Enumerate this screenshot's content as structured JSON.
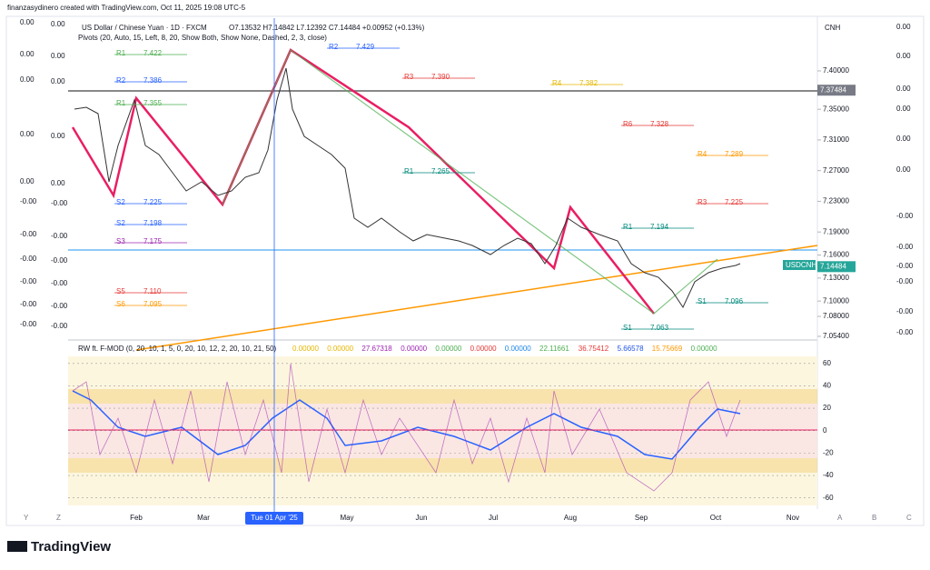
{
  "header": "finanzasydinero created with TradingView.com, Oct 11, 2025 19:08 UTC-5",
  "legend": {
    "symbol": "US Dollar / Chinese Yuan · 1D · FXCM",
    "ohlc": "O7.13532 H7.14842 L7.12392 C7.14484 +0.00952 (+0.13%)",
    "pivots": "Pivots (20, Auto, 15, Left, 8, 20, Show Both, Show None, Dashed, 2, 3, close)"
  },
  "currency": "CNH",
  "price_axis": {
    "ylim": [
      7.0516,
      7.4687
    ],
    "yticks": [
      {
        "value": 7.4,
        "label": "7.40000"
      },
      {
        "value": 7.35,
        "label": "7.35000"
      },
      {
        "value": 7.31,
        "label": "7.31000"
      },
      {
        "value": 7.27,
        "label": "7.27000"
      },
      {
        "value": 7.23,
        "label": "7.23000"
      },
      {
        "value": 7.19,
        "label": "7.19000"
      },
      {
        "value": 7.16,
        "label": "7.16000"
      },
      {
        "value": 7.13,
        "label": "7.13000"
      },
      {
        "value": 7.1,
        "label": "7.10000"
      },
      {
        "value": 7.08,
        "label": "7.08000"
      },
      {
        "value": 7.054,
        "label": "7.05400"
      }
    ],
    "marked_level": {
      "value": 7.37484,
      "label": "7.37484"
    },
    "last_price": {
      "symbol": "USDCNH",
      "value": 7.14484,
      "label": "7.14484"
    }
  },
  "left_scale_1": [
    "0.00",
    "0.00",
    "0.00",
    "0.00",
    "0.00",
    "-0.00",
    "-0.00",
    "-0.00",
    "-0.00",
    "-0.00",
    "-0.00"
  ],
  "left_scale_2": [
    "0.00",
    "0.00",
    "0.00",
    "0.00",
    "0.00",
    "-0.00",
    "-0.00",
    "-0.00",
    "-0.00",
    "-0.00",
    "-0.00"
  ],
  "right_scale": [
    "0.00",
    "0.00",
    "0.00",
    "0.00",
    "0.00",
    "0.00",
    "-0.00",
    "-0.00",
    "-0.00",
    "-0.00",
    "-0.00",
    "-0.00"
  ],
  "pivots": [
    {
      "label": "R1",
      "price": "7.422"
    },
    {
      "label": "R2",
      "price": "7.386"
    },
    {
      "label": "R1",
      "price": "7.355"
    },
    {
      "label": "S2",
      "price": "7.225"
    },
    {
      "label": "S2",
      "price": "7.198"
    },
    {
      "label": "S3",
      "price": "7.175"
    },
    {
      "label": "S5",
      "price": "7.110"
    },
    {
      "label": "S6",
      "price": "7.095"
    },
    {
      "label": "R2",
      "price": "7.429"
    },
    {
      "label": "R3",
      "price": "7.390"
    },
    {
      "label": "R1",
      "price": "7.265"
    },
    {
      "label": "R4",
      "price": "7.382"
    },
    {
      "label": "R6",
      "price": "7.328"
    },
    {
      "label": "R4",
      "price": "7.289"
    },
    {
      "label": "R3",
      "price": "7.225"
    },
    {
      "label": "S1",
      "price": "7.096"
    },
    {
      "label": "S1",
      "price": "7.063"
    },
    {
      "label": "R1",
      "price": "7.194"
    }
  ],
  "oscillator": {
    "title": "RW ft. F-MOD (0, 20, 10, 1, 5, 0, 20, 10, 12, 2, 20, 10, 21, 50)",
    "readouts": [
      {
        "text": "0.00000",
        "color": "#e6b800"
      },
      {
        "text": "0.00000",
        "color": "#e6b800"
      },
      {
        "text": "27.67318",
        "color": "#9c27b0"
      },
      {
        "text": "0.00000",
        "color": "#9c27b0"
      },
      {
        "text": "0.00000",
        "color": "#4caf50"
      },
      {
        "text": "0.00000",
        "color": "#e53935"
      },
      {
        "text": "0.00000",
        "color": "#1e88e5"
      },
      {
        "text": "22.11661",
        "color": "#4caf50"
      },
      {
        "text": "36.75412",
        "color": "#e53935"
      },
      {
        "text": "5.66578",
        "color": "#1e53e5"
      },
      {
        "text": "15.75669",
        "color": "#ff9800"
      },
      {
        "text": "0.00000",
        "color": "#4caf50"
      }
    ],
    "ylim": [
      -70,
      72
    ],
    "yticks": [
      60,
      40,
      20,
      0,
      -20,
      -40,
      -60
    ]
  },
  "dates": [
    "Feb",
    "Mar",
    "Tue 01 Apr '25",
    "May",
    "Jun",
    "Jul",
    "Aug",
    "Sep",
    "Oct",
    "Nov"
  ],
  "axis_buttons_left": [
    "Y",
    "Z"
  ],
  "axis_buttons_right": [
    "A",
    "B",
    "C"
  ],
  "logo": "TradingView"
}
